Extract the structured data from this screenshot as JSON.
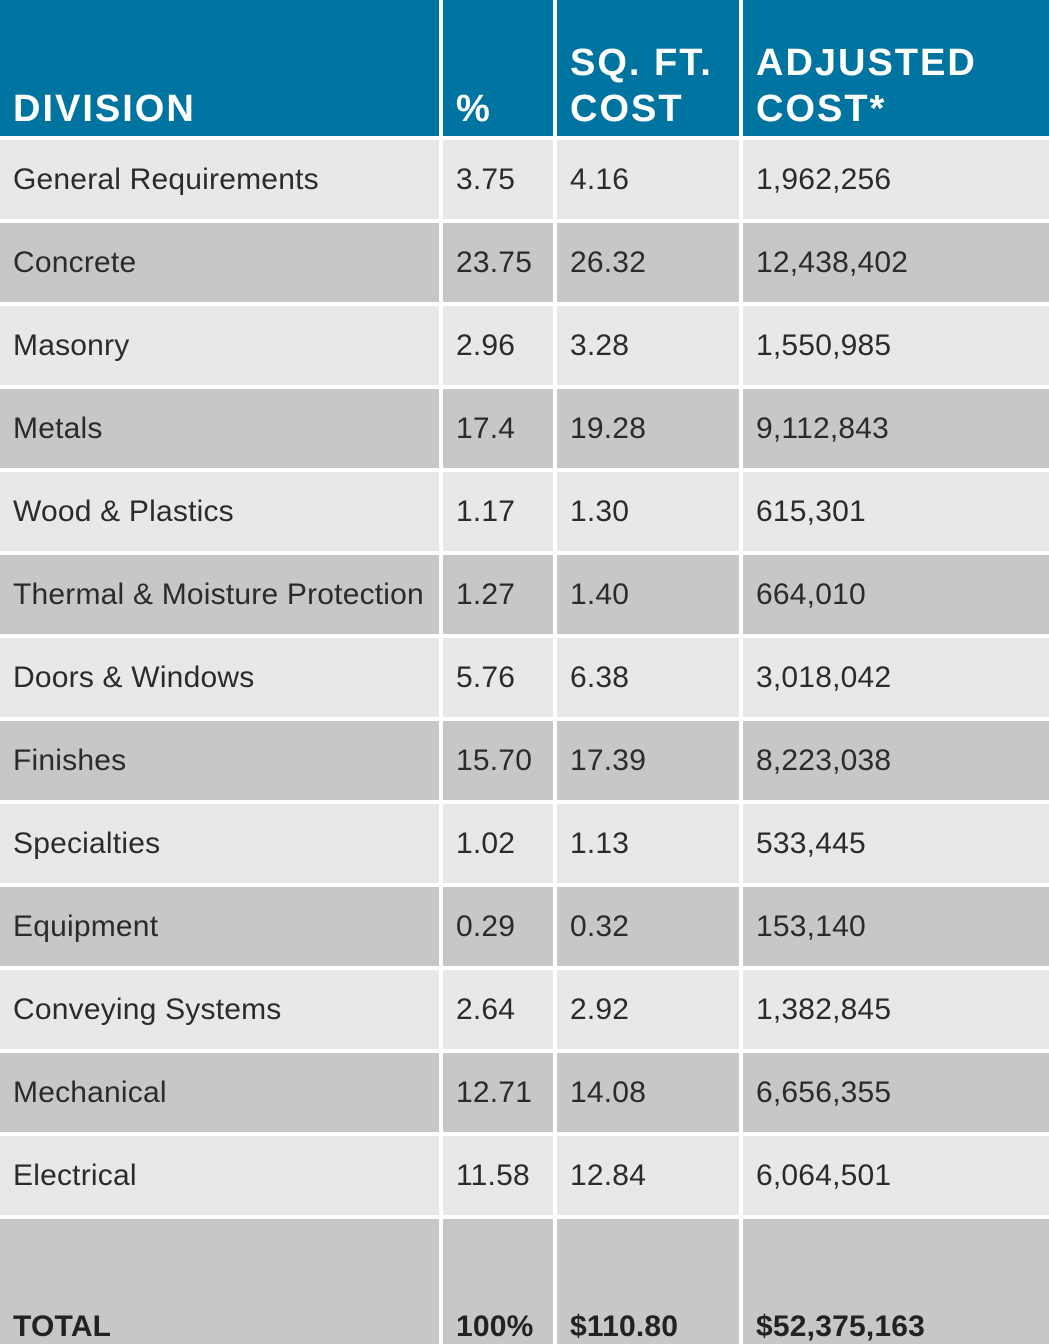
{
  "header": {
    "division": "DIVISION",
    "percent": "%",
    "sqft_cost": "SQ. FT. COST",
    "adjusted_cost": "ADJUSTED COST*"
  },
  "rows": [
    {
      "division": "General Requirements",
      "percent": "3.75",
      "sqft": "4.16",
      "adjusted": "1,962,256"
    },
    {
      "division": "Concrete",
      "percent": "23.75",
      "sqft": "26.32",
      "adjusted": "12,438,402"
    },
    {
      "division": "Masonry",
      "percent": "2.96",
      "sqft": "3.28",
      "adjusted": "1,550,985"
    },
    {
      "division": "Metals",
      "percent": "17.4",
      "sqft": "19.28",
      "adjusted": "9,112,843"
    },
    {
      "division": "Wood & Plastics",
      "percent": "1.17",
      "sqft": "1.30",
      "adjusted": "615,301"
    },
    {
      "division": "Thermal & Moisture Protection",
      "percent": "1.27",
      "sqft": "1.40",
      "adjusted": "664,010"
    },
    {
      "division": "Doors & Windows",
      "percent": "5.76",
      "sqft": "6.38",
      "adjusted": "3,018,042"
    },
    {
      "division": "Finishes",
      "percent": "15.70",
      "sqft": "17.39",
      "adjusted": "8,223,038"
    },
    {
      "division": "Specialties",
      "percent": "1.02",
      "sqft": "1.13",
      "adjusted": "533,445"
    },
    {
      "division": "Equipment",
      "percent": "0.29",
      "sqft": "0.32",
      "adjusted": "153,140"
    },
    {
      "division": "Conveying Systems",
      "percent": "2.64",
      "sqft": "2.92",
      "adjusted": "1,382,845"
    },
    {
      "division": "Mechanical",
      "percent": "12.71",
      "sqft": "14.08",
      "adjusted": "6,656,355"
    },
    {
      "division": "Electrical",
      "percent": "11.58",
      "sqft": "12.84",
      "adjusted": "6,064,501"
    }
  ],
  "total": {
    "label": "TOTAL",
    "percent": "100%",
    "sqft": "$110.80",
    "adjusted": "$52,375,163"
  },
  "colors": {
    "header_bg": "#0074a0",
    "row_light": "#e8e8e8",
    "row_dark": "#c6c7c9"
  }
}
